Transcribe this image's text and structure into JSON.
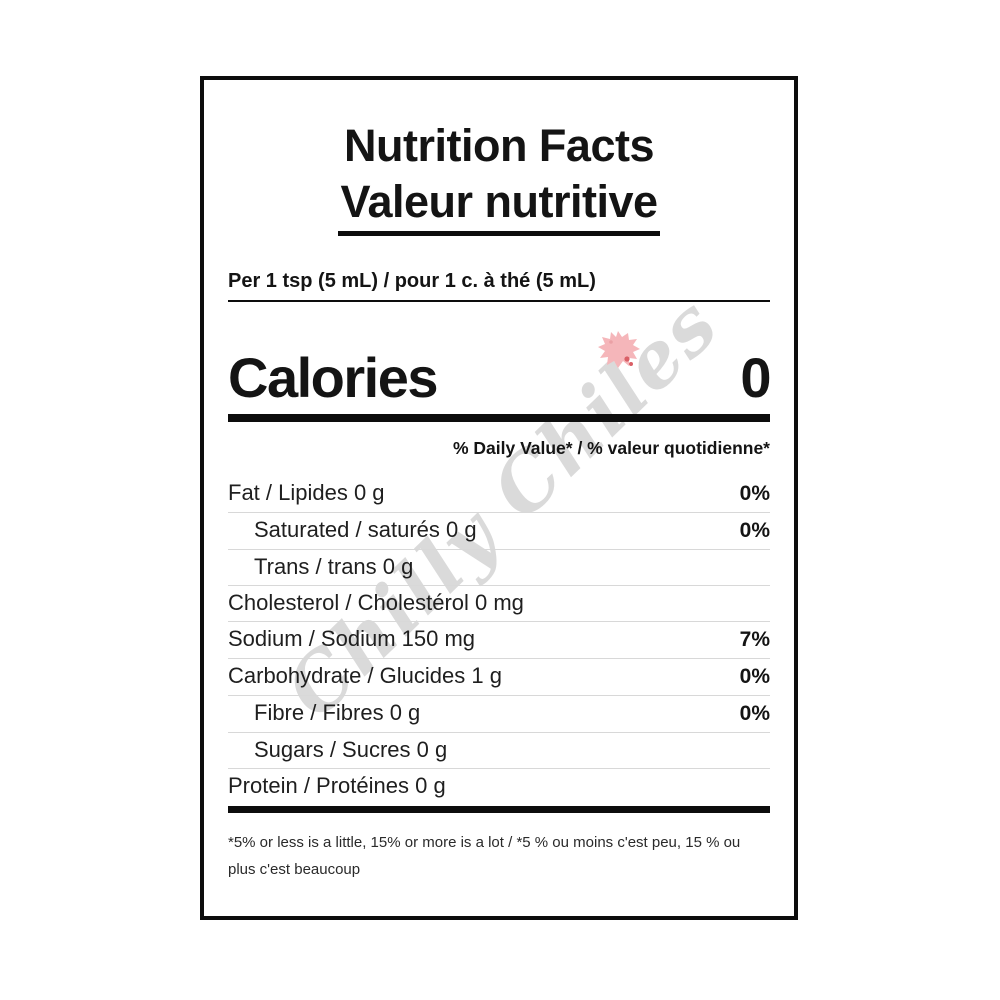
{
  "label": {
    "title": "Nutrition Facts",
    "subtitle": "Valeur nutritive",
    "serving": "Per 1 tsp (5 mL) / pour 1 c. à thé (5 mL)",
    "calories": {
      "label": "Calories",
      "value": "0"
    },
    "daily_value_header": "% Daily Value* / % valeur quotidienne*",
    "nutrients": [
      {
        "label": "Fat / Lipides 0 g",
        "pct": "0%",
        "indent": false
      },
      {
        "label": "Saturated / saturés 0 g",
        "pct": "0%",
        "indent": true
      },
      {
        "label": "Trans / trans 0 g",
        "pct": "",
        "indent": true
      },
      {
        "label": "Cholesterol / Cholestérol 0 mg",
        "pct": "",
        "indent": false
      },
      {
        "label": "Sodium / Sodium 150 mg",
        "pct": "7%",
        "indent": false
      },
      {
        "label": "Carbohydrate / Glucides 1 g",
        "pct": "0%",
        "indent": false
      },
      {
        "label": "Fibre / Fibres 0 g",
        "pct": "0%",
        "indent": true
      },
      {
        "label": "Sugars / Sucres 0 g",
        "pct": "",
        "indent": true
      },
      {
        "label": "Protein / Protéines 0 g",
        "pct": "",
        "indent": false
      }
    ],
    "footnote_line1": "*5% or less is a little, 15% or more is a lot / *5 % ou moins c'est peu, 15 % ou",
    "footnote_line2": "plus c'est beaucoup"
  },
  "watermark": {
    "text": "Chilly Chiles"
  },
  "colors": {
    "text": "#141414",
    "rule_black": "#0d0d0d",
    "hairline": "#d8d8d8",
    "watermark_gray": "#bdbdbd",
    "splat_pink": "#f5b6ba",
    "splat_red": "#d95f66",
    "background": "#ffffff"
  }
}
